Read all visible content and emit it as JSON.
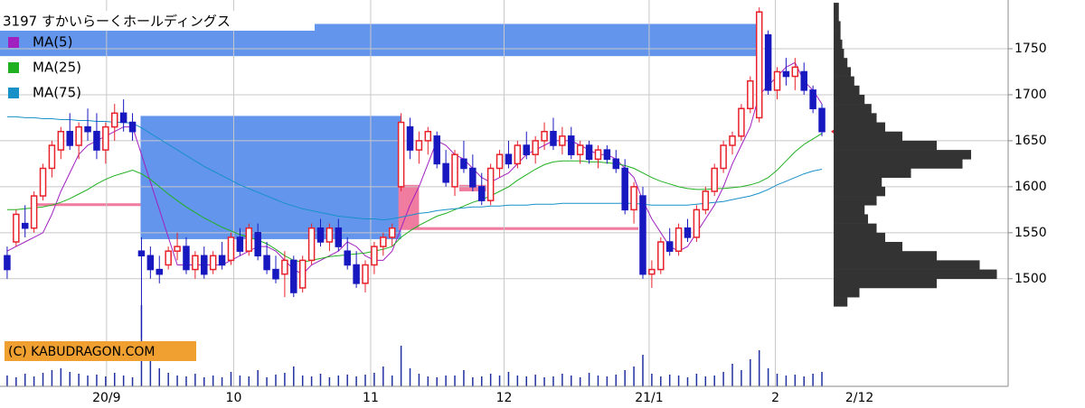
{
  "chart_data": {
    "type": "candlestick",
    "title": "3197 すかいらーくホールディングス",
    "copyright": "(C) KABUDRAGON.COM",
    "xlim": [
      -0.8,
      111.8
    ],
    "xticks": [
      {
        "value": 11.1,
        "label": "20/9"
      },
      {
        "value": 25.3,
        "label": "10"
      },
      {
        "value": 40.6,
        "label": "11"
      },
      {
        "value": 55.5,
        "label": "12"
      },
      {
        "value": 71.7,
        "label": "21/1"
      },
      {
        "value": 85.8,
        "label": "2"
      },
      {
        "value": 95.2,
        "label": "2/12"
      }
    ],
    "ylim": [
      1383,
      1803
    ],
    "yticks": [
      1500,
      1550,
      1600,
      1650,
      1700,
      1750
    ],
    "grid": true,
    "up_color": "#e8202a",
    "down_color": "#1818c0",
    "ohlc": [
      [
        1525,
        1535,
        1500,
        1510
      ],
      [
        1540,
        1575,
        1535,
        1570
      ],
      [
        1560,
        1580,
        1545,
        1555
      ],
      [
        1555,
        1595,
        1550,
        1590
      ],
      [
        1590,
        1625,
        1585,
        1620
      ],
      [
        1620,
        1650,
        1610,
        1645
      ],
      [
        1640,
        1665,
        1630,
        1660
      ],
      [
        1660,
        1680,
        1640,
        1645
      ],
      [
        1645,
        1670,
        1630,
        1665
      ],
      [
        1665,
        1685,
        1650,
        1660
      ],
      [
        1660,
        1680,
        1630,
        1640
      ],
      [
        1640,
        1670,
        1625,
        1665
      ],
      [
        1665,
        1690,
        1650,
        1680
      ],
      [
        1680,
        1695,
        1660,
        1670
      ],
      [
        1670,
        1680,
        1650,
        1660
      ],
      [
        1530,
        1545,
        1435,
        1525
      ],
      [
        1525,
        1535,
        1500,
        1510
      ],
      [
        1510,
        1525,
        1495,
        1505
      ],
      [
        1515,
        1535,
        1510,
        1530
      ],
      [
        1530,
        1550,
        1520,
        1535
      ],
      [
        1535,
        1545,
        1505,
        1510
      ],
      [
        1510,
        1530,
        1500,
        1525
      ],
      [
        1525,
        1535,
        1500,
        1505
      ],
      [
        1510,
        1530,
        1505,
        1525
      ],
      [
        1525,
        1540,
        1510,
        1515
      ],
      [
        1520,
        1550,
        1515,
        1545
      ],
      [
        1545,
        1555,
        1525,
        1530
      ],
      [
        1530,
        1560,
        1525,
        1555
      ],
      [
        1550,
        1560,
        1520,
        1525
      ],
      [
        1525,
        1540,
        1505,
        1510
      ],
      [
        1510,
        1525,
        1495,
        1500
      ],
      [
        1505,
        1530,
        1480,
        1520
      ],
      [
        1520,
        1525,
        1480,
        1485
      ],
      [
        1490,
        1525,
        1485,
        1520
      ],
      [
        1520,
        1560,
        1515,
        1555
      ],
      [
        1555,
        1565,
        1535,
        1540
      ],
      [
        1540,
        1560,
        1530,
        1555
      ],
      [
        1555,
        1565,
        1530,
        1535
      ],
      [
        1530,
        1545,
        1510,
        1515
      ],
      [
        1515,
        1530,
        1490,
        1495
      ],
      [
        1495,
        1520,
        1485,
        1515
      ],
      [
        1515,
        1540,
        1505,
        1535
      ],
      [
        1535,
        1550,
        1525,
        1545
      ],
      [
        1545,
        1560,
        1535,
        1555
      ],
      [
        1600,
        1680,
        1595,
        1670
      ],
      [
        1665,
        1675,
        1630,
        1640
      ],
      [
        1640,
        1660,
        1625,
        1650
      ],
      [
        1650,
        1665,
        1635,
        1660
      ],
      [
        1655,
        1660,
        1620,
        1625
      ],
      [
        1625,
        1640,
        1600,
        1605
      ],
      [
        1600,
        1640,
        1590,
        1635
      ],
      [
        1630,
        1650,
        1615,
        1620
      ],
      [
        1620,
        1635,
        1595,
        1600
      ],
      [
        1600,
        1615,
        1580,
        1585
      ],
      [
        1585,
        1625,
        1580,
        1620
      ],
      [
        1620,
        1640,
        1610,
        1635
      ],
      [
        1635,
        1650,
        1620,
        1625
      ],
      [
        1625,
        1650,
        1620,
        1645
      ],
      [
        1645,
        1660,
        1630,
        1635
      ],
      [
        1635,
        1655,
        1625,
        1650
      ],
      [
        1650,
        1670,
        1640,
        1660
      ],
      [
        1660,
        1675,
        1640,
        1645
      ],
      [
        1645,
        1665,
        1635,
        1655
      ],
      [
        1655,
        1665,
        1630,
        1635
      ],
      [
        1635,
        1650,
        1625,
        1645
      ],
      [
        1645,
        1650,
        1625,
        1630
      ],
      [
        1630,
        1645,
        1620,
        1640
      ],
      [
        1640,
        1645,
        1625,
        1630
      ],
      [
        1630,
        1640,
        1615,
        1620
      ],
      [
        1620,
        1630,
        1570,
        1575
      ],
      [
        1575,
        1605,
        1560,
        1600
      ],
      [
        1590,
        1600,
        1500,
        1505
      ],
      [
        1505,
        1520,
        1490,
        1510
      ],
      [
        1510,
        1545,
        1505,
        1540
      ],
      [
        1540,
        1555,
        1525,
        1530
      ],
      [
        1530,
        1560,
        1525,
        1555
      ],
      [
        1555,
        1565,
        1540,
        1545
      ],
      [
        1545,
        1580,
        1540,
        1575
      ],
      [
        1575,
        1600,
        1570,
        1595
      ],
      [
        1595,
        1625,
        1590,
        1620
      ],
      [
        1620,
        1650,
        1615,
        1645
      ],
      [
        1645,
        1660,
        1635,
        1655
      ],
      [
        1655,
        1690,
        1650,
        1685
      ],
      [
        1685,
        1720,
        1680,
        1715
      ],
      [
        1675,
        1795,
        1670,
        1790
      ],
      [
        1765,
        1770,
        1700,
        1705
      ],
      [
        1705,
        1730,
        1695,
        1725
      ],
      [
        1725,
        1740,
        1710,
        1720
      ],
      [
        1720,
        1740,
        1705,
        1730
      ],
      [
        1725,
        1735,
        1700,
        1705
      ],
      [
        1705,
        1710,
        1680,
        1685
      ],
      [
        1685,
        1690,
        1655,
        1660
      ]
    ],
    "series": [
      {
        "name": "MA(5)",
        "color": "#a020c0",
        "values": [
          1530,
          1535,
          1540,
          1545,
          1550,
          1570,
          1595,
          1615,
          1635,
          1645,
          1650,
          1655,
          1660,
          1665,
          1665,
          1635,
          1605,
          1575,
          1545,
          1515,
          1515,
          1515,
          1515,
          1515,
          1515,
          1520,
          1525,
          1530,
          1535,
          1535,
          1530,
          1520,
          1510,
          1505,
          1515,
          1520,
          1525,
          1530,
          1540,
          1535,
          1525,
          1520,
          1520,
          1530,
          1555,
          1580,
          1600,
          1625,
          1650,
          1645,
          1635,
          1630,
          1620,
          1610,
          1605,
          1610,
          1615,
          1625,
          1635,
          1640,
          1645,
          1650,
          1650,
          1650,
          1645,
          1640,
          1635,
          1635,
          1630,
          1620,
          1610,
          1585,
          1565,
          1550,
          1535,
          1530,
          1535,
          1550,
          1565,
          1580,
          1600,
          1625,
          1645,
          1665,
          1700,
          1710,
          1720,
          1730,
          1735,
          1715,
          1705,
          1690
        ]
      },
      {
        "name": "MA(25)",
        "color": "#20b020",
        "values": [
          1575,
          1575,
          1576,
          1577,
          1578,
          1580,
          1583,
          1587,
          1592,
          1597,
          1603,
          1608,
          1612,
          1615,
          1618,
          1614,
          1608,
          1600,
          1592,
          1585,
          1578,
          1572,
          1566,
          1561,
          1556,
          1552,
          1548,
          1545,
          1542,
          1538,
          1532,
          1525,
          1520,
          1518,
          1520,
          1522,
          1524,
          1525,
          1526,
          1527,
          1528,
          1530,
          1532,
          1535,
          1545,
          1552,
          1558,
          1563,
          1568,
          1571,
          1575,
          1579,
          1583,
          1586,
          1590,
          1595,
          1600,
          1607,
          1613,
          1619,
          1624,
          1627,
          1628,
          1628,
          1628,
          1627,
          1627,
          1626,
          1625,
          1623,
          1620,
          1615,
          1610,
          1606,
          1603,
          1600,
          1598,
          1597,
          1597,
          1598,
          1598,
          1599,
          1600,
          1602,
          1605,
          1610,
          1618,
          1628,
          1638,
          1646,
          1652,
          1658
        ]
      },
      {
        "name": "MA(75)",
        "color": "#1890c8",
        "values": [
          1676,
          1676,
          1675,
          1675,
          1674,
          1674,
          1673,
          1673,
          1672,
          1672,
          1671,
          1671,
          1670,
          1670,
          1669,
          1664,
          1658,
          1652,
          1646,
          1640,
          1634,
          1628,
          1622,
          1617,
          1612,
          1607,
          1602,
          1598,
          1594,
          1590,
          1586,
          1582,
          1579,
          1576,
          1574,
          1572,
          1570,
          1568,
          1567,
          1566,
          1565,
          1565,
          1564,
          1565,
          1567,
          1569,
          1571,
          1572,
          1574,
          1575,
          1576,
          1577,
          1578,
          1578,
          1579,
          1579,
          1580,
          1580,
          1580,
          1581,
          1581,
          1581,
          1582,
          1582,
          1582,
          1582,
          1582,
          1582,
          1582,
          1582,
          1582,
          1581,
          1580,
          1580,
          1580,
          1580,
          1580,
          1581,
          1582,
          1583,
          1584,
          1586,
          1588,
          1590,
          1593,
          1597,
          1602,
          1606,
          1610,
          1614,
          1617,
          1619
        ]
      }
    ],
    "volume": [
      12,
      10,
      14,
      11,
      15,
      18,
      20,
      16,
      14,
      12,
      13,
      11,
      15,
      12,
      10,
      90,
      30,
      20,
      15,
      12,
      11,
      14,
      10,
      12,
      10,
      16,
      12,
      11,
      18,
      10,
      13,
      15,
      22,
      12,
      11,
      14,
      10,
      12,
      13,
      11,
      13,
      15,
      22,
      12,
      45,
      20,
      14,
      11,
      10,
      12,
      12,
      18,
      10,
      11,
      14,
      12,
      16,
      12,
      11,
      13,
      10,
      11,
      14,
      12,
      10,
      15,
      12,
      11,
      13,
      18,
      22,
      35,
      14,
      11,
      13,
      12,
      10,
      14,
      11,
      12,
      16,
      25,
      18,
      30,
      40,
      20,
      14,
      12,
      13,
      11,
      14,
      16
    ],
    "volume_ylim": [
      0,
      100
    ],
    "volume_color": "#2030a0",
    "volume_profile": {
      "color": "#333333",
      "xlim": [
        0,
        100
      ],
      "prices": [
        1475,
        1485,
        1495,
        1505,
        1515,
        1525,
        1535,
        1545,
        1555,
        1565,
        1575,
        1585,
        1595,
        1605,
        1615,
        1625,
        1635,
        1645,
        1655,
        1665,
        1675,
        1685,
        1695,
        1705,
        1715,
        1725,
        1735,
        1745,
        1755,
        1765,
        1775,
        1785,
        1795
      ],
      "values": [
        8,
        15,
        60,
        95,
        85,
        60,
        40,
        30,
        25,
        20,
        18,
        25,
        30,
        28,
        45,
        75,
        80,
        60,
        40,
        30,
        25,
        22,
        18,
        15,
        12,
        10,
        8,
        6,
        5,
        4,
        4,
        3,
        3
      ]
    },
    "zones": [
      {
        "from": -0.8,
        "to": 84,
        "low": 1742,
        "high": 1777,
        "color": "#6495ed"
      },
      {
        "from": 14.9,
        "to": 44,
        "low": 1543,
        "high": 1677,
        "color": "#6495ed"
      },
      {
        "from": 43.7,
        "to": 46,
        "low": 1553,
        "high": 1602,
        "color": "#f07ca0"
      },
      {
        "from": 46,
        "to": 70.5,
        "low": 1553,
        "high": 1556,
        "color": "#f07ca0"
      },
      {
        "from": 50.5,
        "to": 53.5,
        "low": 1595,
        "high": 1602,
        "color": "#f07ca0"
      },
      {
        "from": 3,
        "to": 14.9,
        "low": 1579,
        "high": 1582,
        "color": "#f07ca0"
      }
    ]
  }
}
